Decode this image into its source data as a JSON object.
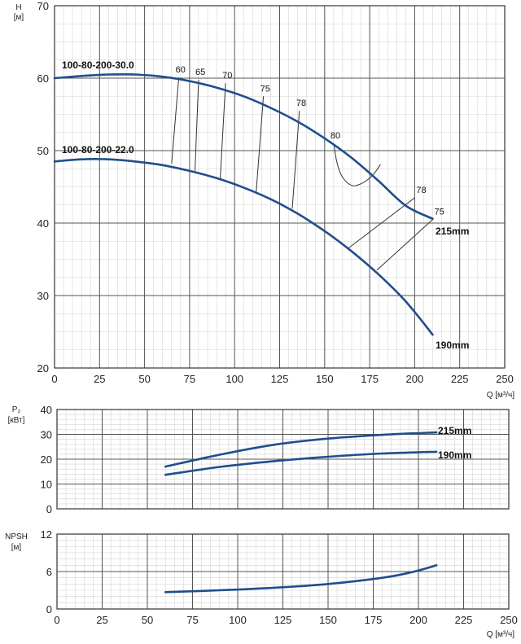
{
  "chart_data": [
    {
      "type": "line",
      "id": "head",
      "ylabel": "H",
      "yunit": "[м]",
      "xlabel": "Q [м³/ч]",
      "xlim": [
        0,
        250
      ],
      "ylim": [
        20,
        70
      ],
      "xticks": [
        0,
        25,
        50,
        75,
        100,
        125,
        150,
        175,
        200,
        225,
        250
      ],
      "yticks": [
        20,
        30,
        40,
        50,
        60,
        70
      ],
      "grid": true,
      "series": [
        {
          "name": "215mm",
          "model": "100-80-200-30.0",
          "color": "#1f4e8c",
          "x": [
            0,
            15,
            30,
            45,
            60,
            75,
            90,
            105,
            120,
            135,
            150,
            165,
            180,
            195,
            210
          ],
          "y": [
            60.0,
            60.3,
            60.5,
            60.5,
            60.2,
            59.6,
            58.7,
            57.5,
            55.9,
            54.0,
            51.7,
            49.0,
            45.8,
            42.4,
            40.6
          ]
        },
        {
          "name": "190mm",
          "model": "100-80-200-22.0",
          "color": "#1f4e8c",
          "x": [
            0,
            15,
            30,
            45,
            60,
            75,
            90,
            105,
            120,
            135,
            150,
            165,
            180,
            195,
            210
          ],
          "y": [
            48.5,
            48.8,
            48.8,
            48.5,
            48.0,
            47.2,
            46.2,
            44.9,
            43.3,
            41.3,
            38.9,
            36.1,
            32.9,
            29.2,
            24.6
          ]
        }
      ],
      "efficiency_lines": [
        {
          "label": "60",
          "x": [
            65,
            69
          ],
          "y": [
            48.2,
            60.1
          ]
        },
        {
          "label": "65",
          "x": [
            78,
            80
          ],
          "y": [
            47.2,
            59.8
          ]
        },
        {
          "label": "70",
          "x": [
            92,
            95
          ],
          "y": [
            46.1,
            59.3
          ]
        },
        {
          "label": "75",
          "x": [
            112,
            116
          ],
          "y": [
            44.3,
            57.5
          ]
        },
        {
          "label": "78",
          "x": [
            132,
            136
          ],
          "y": [
            42.0,
            55.5
          ]
        },
        {
          "label": "80",
          "loop": true,
          "x": [
            155,
            157,
            160,
            165,
            170,
            175,
            178,
            181
          ],
          "y": [
            51.0,
            48.2,
            46.3,
            45.2,
            45.4,
            46.2,
            47.0,
            48.1
          ]
        },
        {
          "label": "78",
          "x": [
            163,
            200
          ],
          "y": [
            36.5,
            43.5
          ]
        },
        {
          "label": "75",
          "x": [
            179,
            210
          ],
          "y": [
            33.5,
            40.5
          ]
        }
      ]
    },
    {
      "type": "line",
      "id": "power",
      "ylabel": "P₂",
      "yunit": "[кВт]",
      "xlim": [
        0,
        250
      ],
      "ylim": [
        0,
        40
      ],
      "yticks": [
        0,
        10,
        20,
        30,
        40
      ],
      "grid": true,
      "series": [
        {
          "name": "215mm",
          "x": [
            60,
            90,
            120,
            150,
            180,
            210
          ],
          "y": [
            17.0,
            21.8,
            25.8,
            28.3,
            29.8,
            30.8
          ]
        },
        {
          "name": "190mm",
          "x": [
            60,
            90,
            120,
            150,
            180,
            210
          ],
          "y": [
            13.7,
            16.9,
            19.2,
            21.0,
            22.3,
            23.0
          ]
        }
      ]
    },
    {
      "type": "line",
      "id": "npsh",
      "ylabel": "NPSH",
      "yunit": "[м]",
      "xlabel": "Q [м³/ч]",
      "xlim": [
        0,
        250
      ],
      "ylim": [
        0,
        12
      ],
      "xticks": [
        0,
        25,
        50,
        75,
        100,
        125,
        150,
        175,
        200,
        225,
        250
      ],
      "yticks": [
        0,
        6,
        12
      ],
      "grid": true,
      "series": [
        {
          "name": "",
          "x": [
            60,
            90,
            120,
            150,
            180,
            195,
            210
          ],
          "y": [
            2.7,
            3.0,
            3.4,
            4.0,
            5.0,
            5.8,
            7.0
          ]
        }
      ]
    }
  ]
}
